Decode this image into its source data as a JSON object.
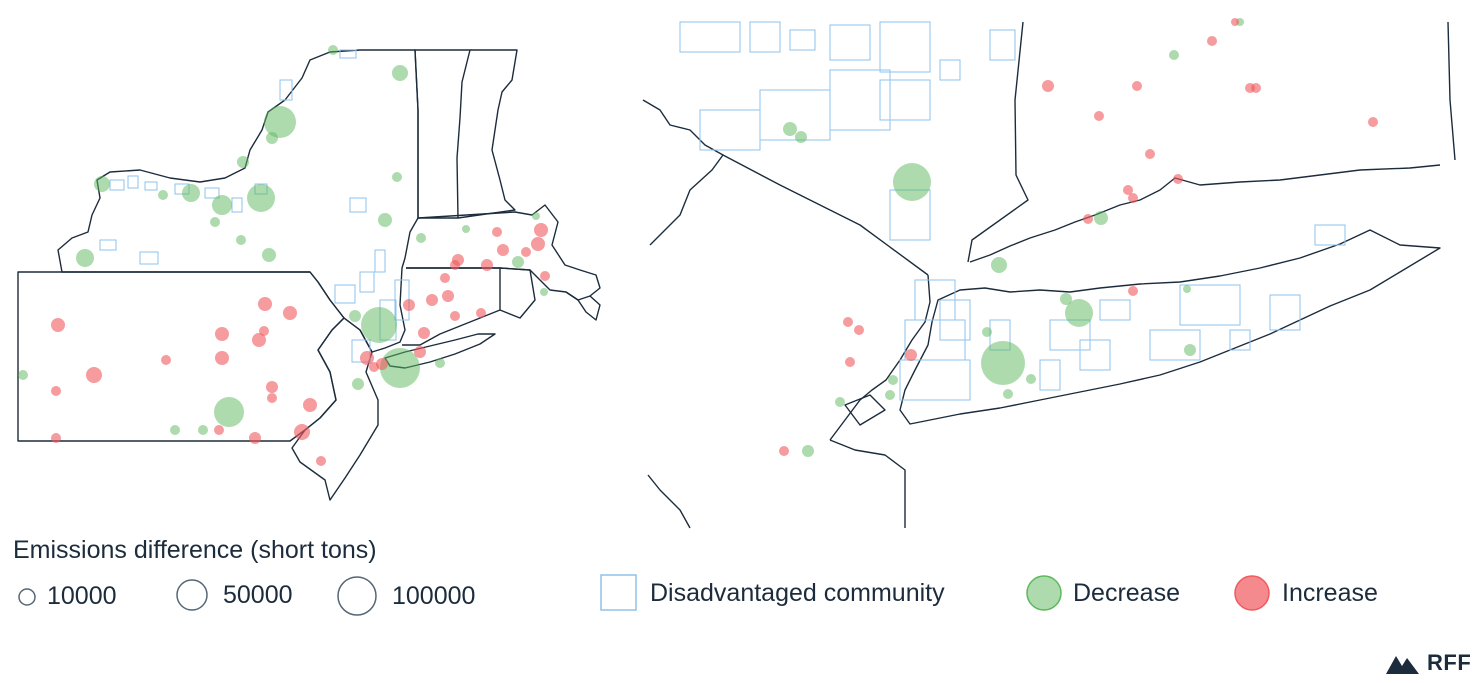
{
  "legend": {
    "title": "Emissions difference (short tons)",
    "sizes": [
      {
        "label": "10000"
      },
      {
        "label": "50000"
      },
      {
        "label": "100000"
      }
    ],
    "categories": {
      "dac": "Disadvantaged community",
      "decrease": "Decrease",
      "increase": "Increase"
    }
  },
  "colors": {
    "decrease": "#5cb85c",
    "increase": "#f0595e",
    "dac_outline": "#8ec3ec",
    "boundary": "#1c2c3c"
  },
  "brand": {
    "name": "RFF"
  }
}
